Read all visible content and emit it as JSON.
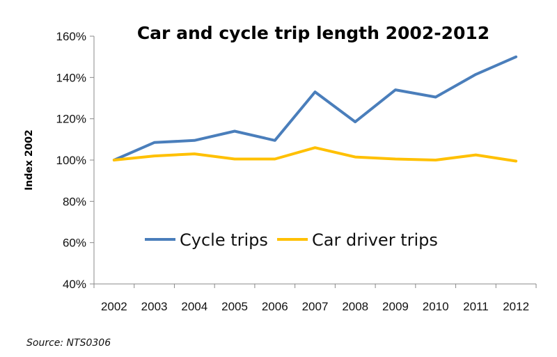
{
  "chart_data": {
    "type": "line",
    "title": "Car and cycle trip length 2002-2012",
    "ylabel": "Index 2002",
    "xlabel": "",
    "categories": [
      "2002",
      "2003",
      "2004",
      "2005",
      "2006",
      "2007",
      "2008",
      "2009",
      "2010",
      "2011",
      "2012"
    ],
    "ylim": [
      0.4,
      1.6
    ],
    "yticks": [
      0.4,
      0.6,
      0.8,
      1.0,
      1.2,
      1.4,
      1.6
    ],
    "ytick_labels": [
      "40%",
      "60%",
      "80%",
      "100%",
      "120%",
      "140%",
      "160%"
    ],
    "grid": false,
    "legend_position": "inside-center",
    "series": [
      {
        "name": "Cycle trips",
        "color": "#4a7ebb",
        "values": [
          1.0,
          1.085,
          1.095,
          1.14,
          1.095,
          1.33,
          1.185,
          1.34,
          1.305,
          1.415,
          1.5
        ]
      },
      {
        "name": "Car driver trips",
        "color": "#ffc000",
        "values": [
          1.0,
          1.02,
          1.03,
          1.005,
          1.005,
          1.06,
          1.015,
          1.005,
          1.0,
          1.025,
          0.995
        ]
      }
    ],
    "source_note": "Source:  NTS0306"
  }
}
